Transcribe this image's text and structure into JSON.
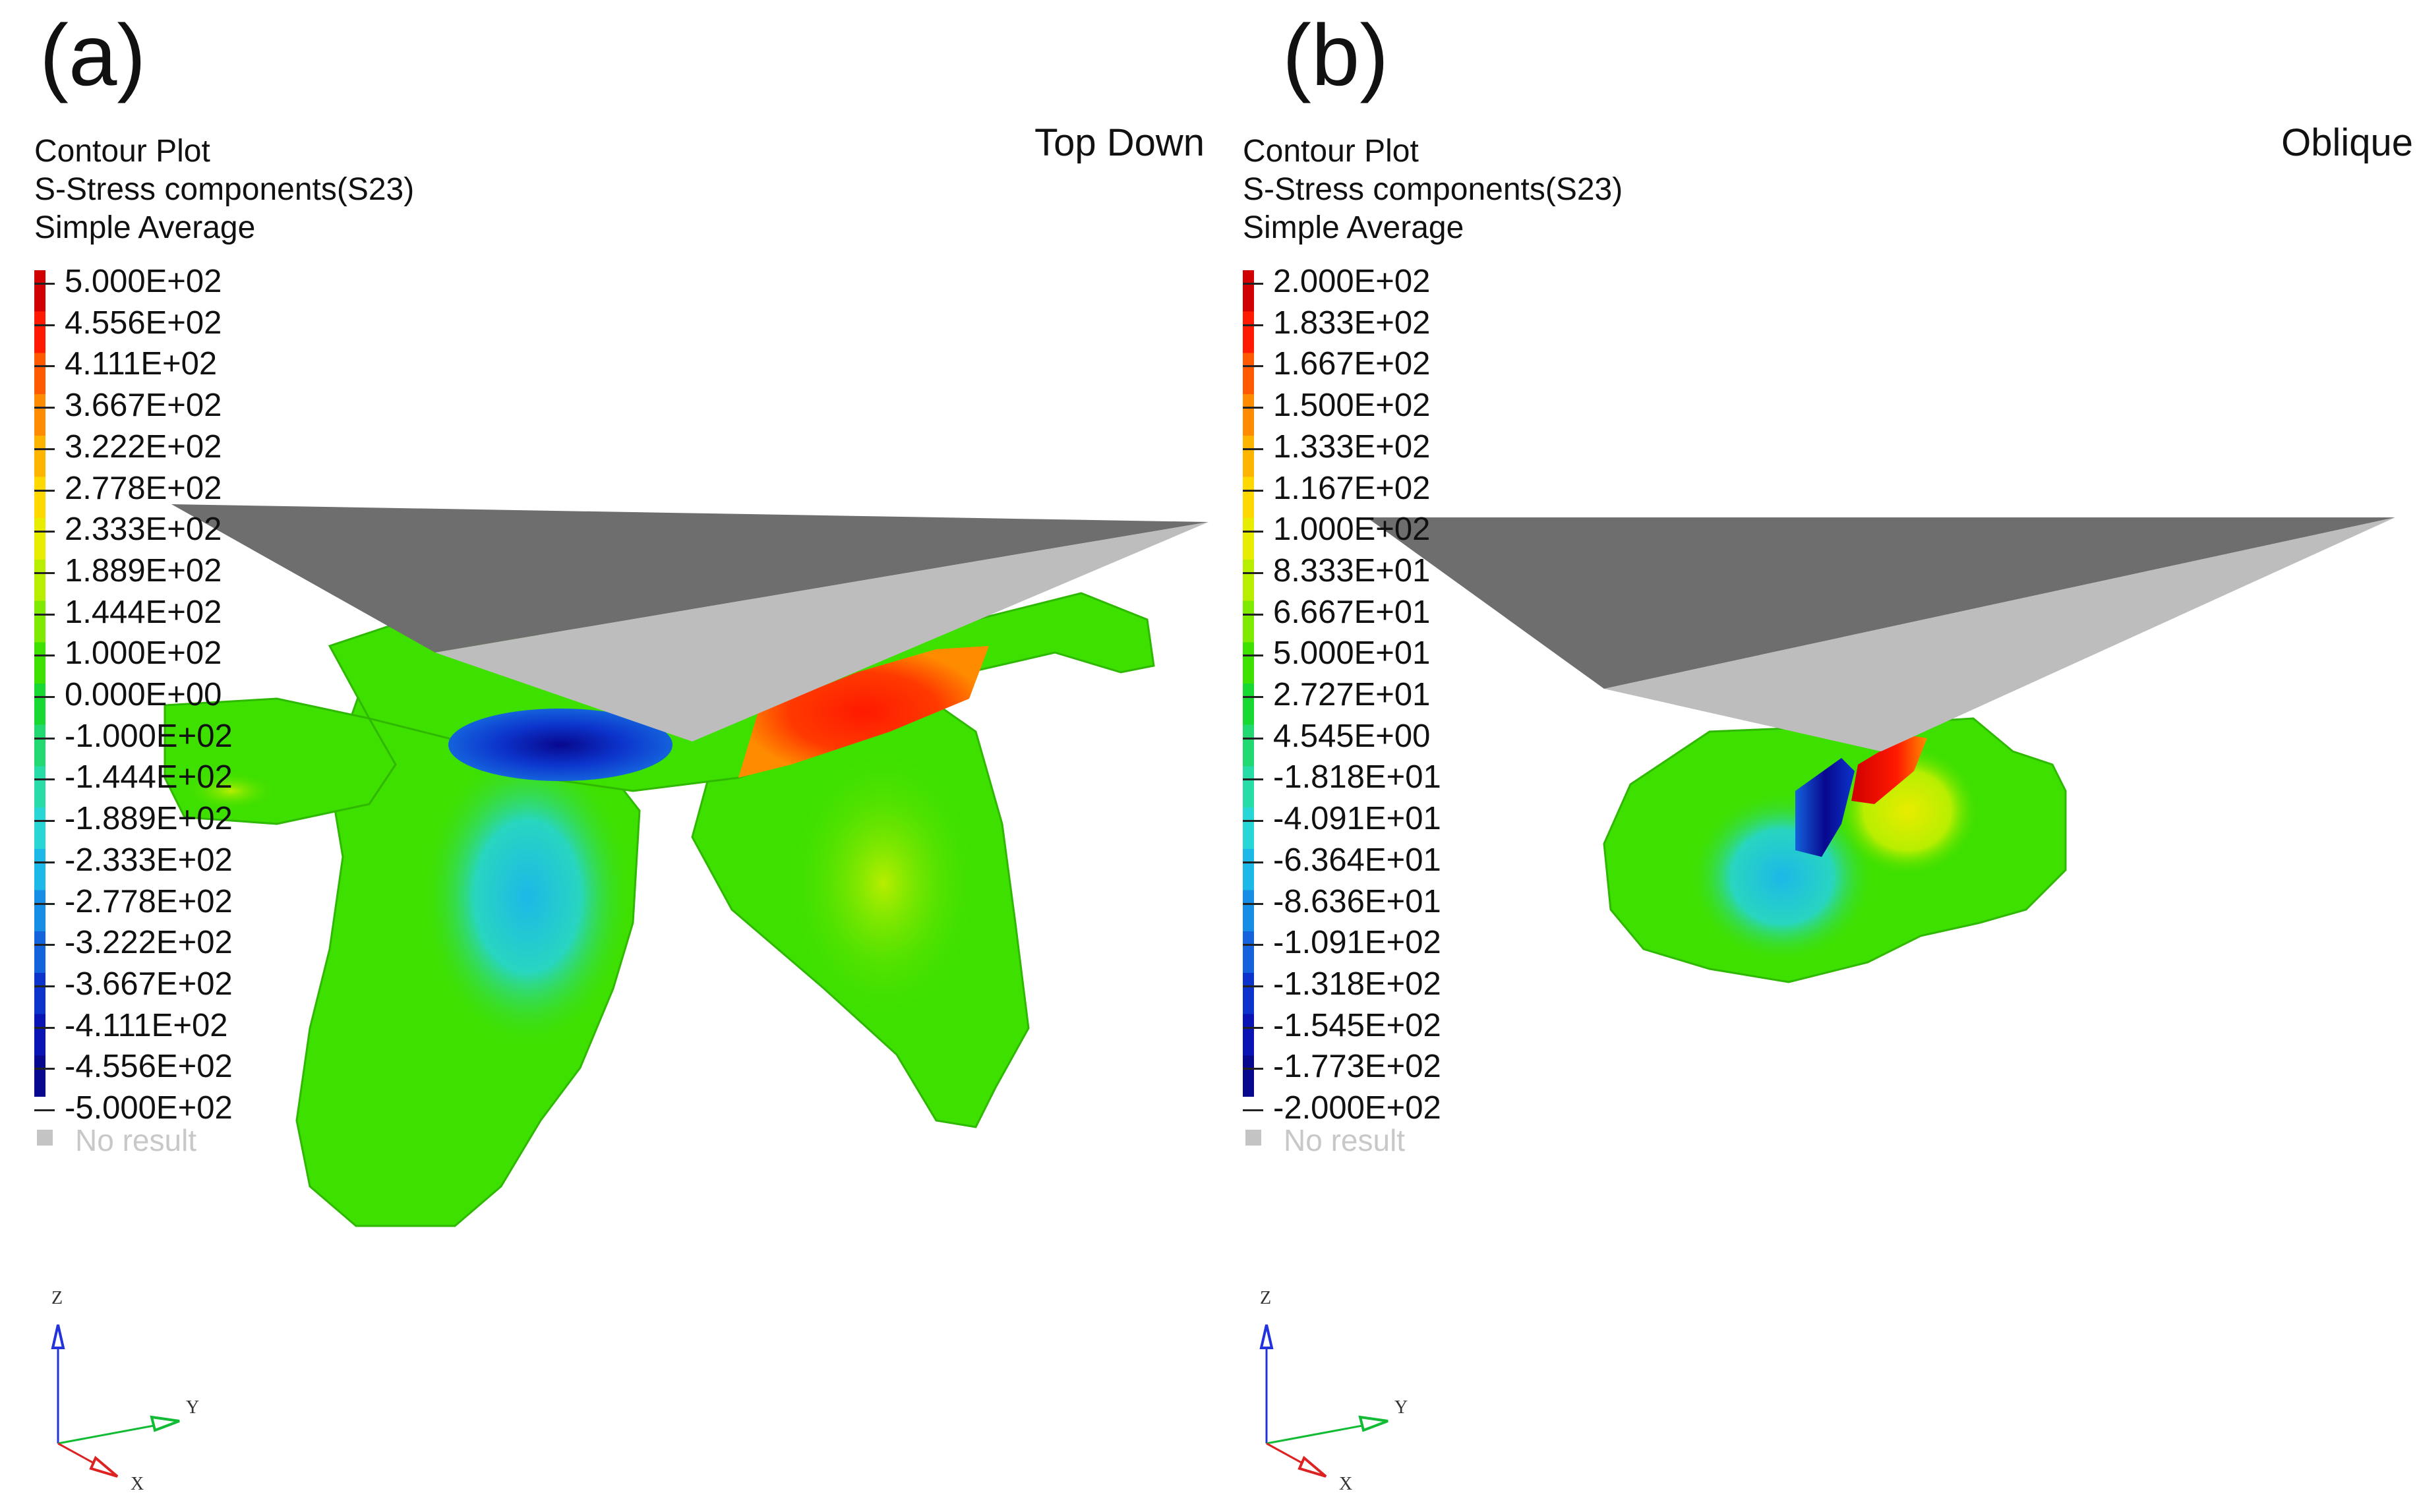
{
  "panels": [
    {
      "letter": "(a)",
      "view": "Top Down",
      "header": {
        "line1": "Contour Plot",
        "line2": "S-Stress components(S23)",
        "line3": "Simple Average"
      },
      "legend": {
        "values": [
          "5.000E+02",
          "4.556E+02",
          "4.111E+02",
          "3.667E+02",
          "3.222E+02",
          "2.778E+02",
          "2.333E+02",
          "1.889E+02",
          "1.444E+02",
          "1.000E+02",
          "0.000E+00",
          "-1.000E+02",
          "-1.444E+02",
          "-1.889E+02",
          "-2.333E+02",
          "-2.778E+02",
          "-3.222E+02",
          "-3.667E+02",
          "-4.111E+02",
          "-4.556E+02",
          "-5.000E+02"
        ],
        "no_result": "No result"
      },
      "triad": {
        "z": "Z",
        "y": "Y",
        "x": "X"
      }
    },
    {
      "letter": "(b)",
      "view": "Oblique",
      "header": {
        "line1": "Contour Plot",
        "line2": "S-Stress components(S23)",
        "line3": "Simple Average"
      },
      "legend": {
        "values": [
          "2.000E+02",
          "1.833E+02",
          "1.667E+02",
          "1.500E+02",
          "1.333E+02",
          "1.167E+02",
          "1.000E+02",
          "8.333E+01",
          "6.667E+01",
          "5.000E+01",
          "2.727E+01",
          "4.545E+00",
          "-1.818E+01",
          "-4.091E+01",
          "-6.364E+01",
          "-8.636E+01",
          "-1.091E+02",
          "-1.318E+02",
          "-1.545E+02",
          "-1.773E+02",
          "-2.000E+02"
        ],
        "no_result": "No result"
      },
      "triad": {
        "z": "Z",
        "y": "Y",
        "x": "X"
      }
    }
  ],
  "colors": {
    "contour_scale": [
      "#d10000",
      "#ff1a00",
      "#ff5a00",
      "#ff8c00",
      "#ffb400",
      "#ffd800",
      "#e8ec00",
      "#b8ee00",
      "#7eea00",
      "#3ee000",
      "#18d832",
      "#22d870",
      "#28dca8",
      "#28d6d6",
      "#1cb8e8",
      "#168ee6",
      "#1462dc",
      "#0c34cc",
      "#0a14b4",
      "#08088e"
    ],
    "tool_dark": "#6e6e6e",
    "tool_light": "#bdbdbd",
    "no_result": "#c4c4c4",
    "triad_z": "#2233dd",
    "triad_y": "#11bb33",
    "triad_x": "#dd2222"
  }
}
